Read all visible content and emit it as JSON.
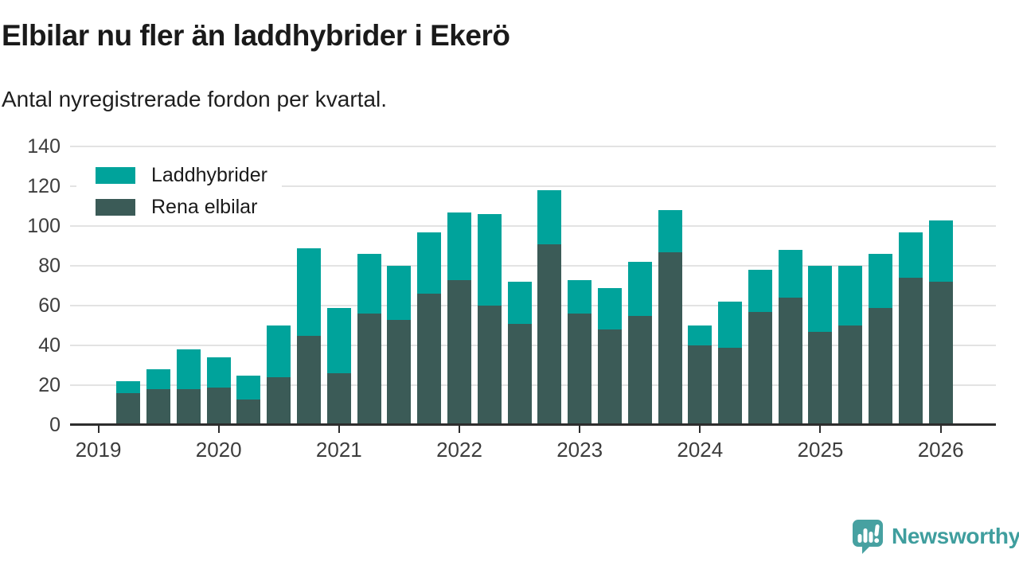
{
  "title": "Elbilar nu fler än laddhybrider i Ekerö",
  "subtitle": "Antal nyregistrerade fordon per kvartal.",
  "legend": {
    "items": [
      {
        "label": "Laddhybrider",
        "color": "#00a39b"
      },
      {
        "label": "Rena elbilar",
        "color": "#3b5b57"
      }
    ]
  },
  "branding": {
    "logo_text": "Newsworthy",
    "logo_color": "#3f9e9e"
  },
  "colors": {
    "laddhybrider": "#00a39b",
    "rena_elbilar": "#3b5b57",
    "gridline": "#e3e3e3",
    "axis": "#2d2d2d",
    "text": "#1a1a1a"
  },
  "chart_data": {
    "type": "bar",
    "stacked": true,
    "title": "Elbilar nu fler än laddhybrider i Ekerö",
    "subtitle": "Antal nyregistrerade fordon per kvartal.",
    "xlabel": "",
    "ylabel": "",
    "ylim": [
      0,
      140
    ],
    "yticks": [
      0,
      20,
      40,
      60,
      80,
      100,
      120,
      140
    ],
    "x_tick_labels": [
      "2019",
      "2020",
      "2021",
      "2022",
      "2023",
      "2024",
      "2025",
      "2026"
    ],
    "grid": true,
    "legend_position": "top-left",
    "categories": [
      "2019Q2",
      "2019Q3",
      "2019Q4",
      "2020Q1",
      "2020Q2",
      "2020Q3",
      "2020Q4",
      "2021Q1",
      "2021Q2",
      "2021Q3",
      "2021Q4",
      "2022Q1",
      "2022Q2",
      "2022Q3",
      "2022Q4",
      "2023Q1",
      "2023Q2",
      "2023Q3",
      "2023Q4",
      "2024Q1",
      "2024Q2",
      "2024Q3",
      "2024Q4",
      "2025Q1",
      "2025Q2",
      "2025Q3",
      "2025Q4",
      "2026Q1"
    ],
    "series": [
      {
        "name": "Rena elbilar",
        "color": "#3b5b57",
        "values": [
          16,
          18,
          18,
          19,
          13,
          24,
          45,
          26,
          56,
          53,
          66,
          73,
          60,
          51,
          91,
          56,
          48,
          55,
          87,
          40,
          39,
          57,
          64,
          47,
          50,
          59,
          74,
          72
        ]
      },
      {
        "name": "Laddhybrider",
        "color": "#00a39b",
        "values": [
          6,
          10,
          20,
          15,
          12,
          26,
          44,
          33,
          30,
          27,
          31,
          34,
          46,
          21,
          27,
          17,
          21,
          27,
          21,
          10,
          23,
          21,
          24,
          33,
          30,
          27,
          23,
          31
        ]
      }
    ],
    "totals": [
      22,
      28,
      38,
      34,
      25,
      50,
      89,
      59,
      86,
      80,
      97,
      107,
      106,
      72,
      118,
      73,
      69,
      82,
      108,
      50,
      62,
      78,
      88,
      80,
      80,
      86,
      97,
      103
    ]
  }
}
